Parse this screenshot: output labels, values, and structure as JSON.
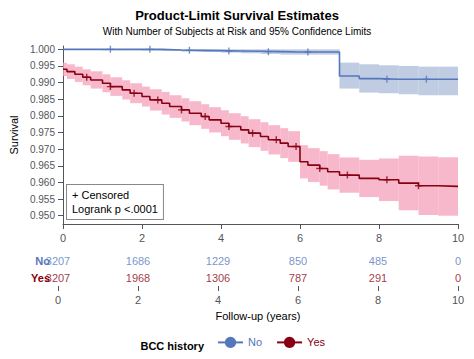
{
  "chart_data": {
    "type": "step",
    "title": "Product-Limit Survival Estimates",
    "subtitle": "With Number of Subjects at Risk and 95% Confidence Limits",
    "xlabel": "Follow-up (years)",
    "ylabel": "Survival",
    "xlim": [
      0,
      10
    ],
    "ylim": [
      0.9475,
      1.001
    ],
    "xticks": [
      0,
      2,
      4,
      6,
      8,
      10
    ],
    "yticks": [
      {
        "value": 0.95,
        "label": "0.950"
      },
      0.955,
      {
        "value": 0.96,
        "label": "0.960"
      },
      0.965,
      {
        "value": 0.97,
        "label": "0.970"
      },
      0.975,
      {
        "value": 0.98,
        "label": "0.980"
      },
      0.985,
      {
        "value": 0.99,
        "label": "0.990"
      },
      0.995,
      {
        "value": 1,
        "label": "1.000"
      }
    ],
    "grid": false,
    "legend": "bottom",
    "legend_title": "BCC history",
    "annotation": "+ Censored\nLogrank p <.0001",
    "series": [
      {
        "name": "No",
        "color": "#5577bb",
        "x": [
          0,
          0.05,
          0.5,
          1.0,
          1.5,
          2.0,
          2.5,
          3.0,
          3.5,
          4.0,
          4.5,
          5.0,
          5.5,
          6.0,
          6.5,
          7.0,
          7.5,
          8.0,
          8.5,
          9.0,
          9.5,
          10.0
        ],
        "values": [
          1.0,
          1.0,
          1.0,
          1.0,
          1.0,
          1.0,
          0.9998,
          0.9997,
          0.9996,
          0.9995,
          0.9994,
          0.9993,
          0.9992,
          0.9992,
          0.9992,
          0.992,
          0.9912,
          0.991,
          0.991,
          0.991,
          0.991,
          0.991
        ],
        "ci": {
          "color": "#aabbd8",
          "upper": [
            1.0,
            1.0,
            1.0,
            1.0,
            1.0,
            1.0,
            1.0,
            1.0,
            1.0,
            1.0,
            1.0,
            1.0,
            1.0,
            1.0,
            1.0,
            0.996,
            0.9955,
            0.9952,
            0.995,
            0.9948,
            0.9948,
            0.9948
          ],
          "lower": [
            1.0,
            1.0,
            0.9998,
            0.9997,
            0.9997,
            0.9996,
            0.9995,
            0.9993,
            0.9992,
            0.999,
            0.9988,
            0.9986,
            0.9984,
            0.9984,
            0.9984,
            0.9882,
            0.987,
            0.9868,
            0.9865,
            0.9862,
            0.9862,
            0.9862
          ]
        },
        "censored": {
          "marker": "plus",
          "x": [
            1.2,
            2.2,
            3.2,
            4.2,
            5.2,
            6.2,
            8.2,
            9.2
          ],
          "y": [
            1.0,
            1.0,
            0.9997,
            0.9995,
            0.9993,
            0.9992,
            0.991,
            0.991
          ]
        }
      },
      {
        "name": "Yes",
        "color": "#880011",
        "x": [
          0,
          0.1,
          0.3,
          0.5,
          0.7,
          1.0,
          1.2,
          1.5,
          1.7,
          2.0,
          2.2,
          2.5,
          2.7,
          3.0,
          3.2,
          3.5,
          3.7,
          4.0,
          4.2,
          4.5,
          4.7,
          5.0,
          5.2,
          5.5,
          5.7,
          6.0,
          6.2,
          6.5,
          6.7,
          7.0,
          7.5,
          8.0,
          8.5,
          9.0,
          9.5,
          10.0
        ],
        "values": [
          0.994,
          0.9933,
          0.9925,
          0.9916,
          0.9908,
          0.9898,
          0.9888,
          0.9878,
          0.9868,
          0.9858,
          0.9848,
          0.9838,
          0.9828,
          0.9818,
          0.9808,
          0.9798,
          0.9788,
          0.9778,
          0.9768,
          0.9758,
          0.9748,
          0.9738,
          0.9728,
          0.9718,
          0.9708,
          0.9662,
          0.9652,
          0.9642,
          0.9632,
          0.9622,
          0.9612,
          0.9608,
          0.9598,
          0.959,
          0.9588,
          0.9588
        ],
        "ci": {
          "color": "#f4a0bb",
          "upper": [
            0.996,
            0.9955,
            0.9948,
            0.994,
            0.9934,
            0.9925,
            0.9916,
            0.9907,
            0.9898,
            0.9888,
            0.988,
            0.9872,
            0.9862,
            0.9853,
            0.9844,
            0.9835,
            0.9826,
            0.9817,
            0.9808,
            0.9799,
            0.979,
            0.9781,
            0.9772,
            0.9763,
            0.9754,
            0.9712,
            0.9703,
            0.9694,
            0.9685,
            0.9675,
            0.9668,
            0.9672,
            0.968,
            0.9678,
            0.9676,
            0.9676
          ],
          "lower": [
            0.992,
            0.9911,
            0.9902,
            0.9892,
            0.9882,
            0.9871,
            0.986,
            0.9849,
            0.9838,
            0.9828,
            0.9816,
            0.9804,
            0.9794,
            0.9783,
            0.9772,
            0.9761,
            0.975,
            0.9739,
            0.9728,
            0.9717,
            0.9706,
            0.9695,
            0.9684,
            0.9673,
            0.9662,
            0.9612,
            0.9601,
            0.959,
            0.9579,
            0.9569,
            0.9556,
            0.9544,
            0.9516,
            0.9502,
            0.95,
            0.95
          ]
        },
        "censored": {
          "marker": "plus",
          "x": [
            0.6,
            1.2,
            1.8,
            2.4,
            3.0,
            3.6,
            4.2,
            4.8,
            5.4,
            5.9,
            6.5,
            7.2,
            8.2,
            9.0
          ],
          "y": [
            0.9916,
            0.9888,
            0.9868,
            0.9848,
            0.9818,
            0.9798,
            0.9768,
            0.9748,
            0.9728,
            0.9708,
            0.9642,
            0.9622,
            0.9608,
            0.959
          ]
        }
      }
    ],
    "at_risk": {
      "x": [
        0,
        2,
        4,
        6,
        8,
        10
      ],
      "rows": [
        {
          "name": "No",
          "values": [
            3207,
            1686,
            1229,
            850,
            485,
            0
          ]
        },
        {
          "name": "Yes",
          "values": [
            3207,
            1968,
            1306,
            787,
            291,
            0
          ]
        }
      ]
    }
  }
}
